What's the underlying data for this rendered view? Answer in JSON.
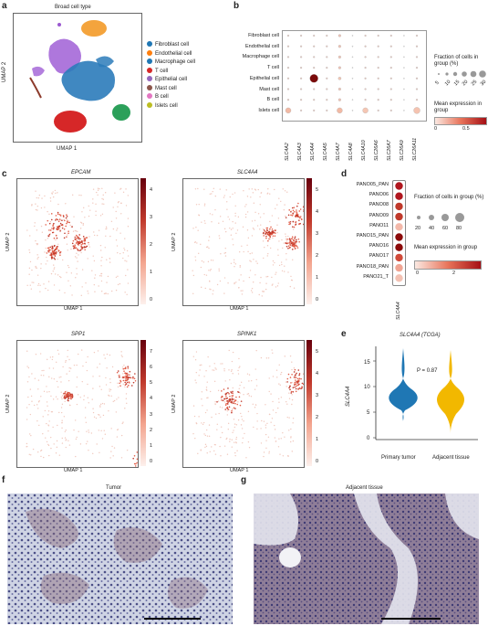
{
  "panels": {
    "a": {
      "letter": "a",
      "title": "Broad cell type",
      "xlabel": "UMAP 1",
      "ylabel": "UMAP 2",
      "legend": [
        {
          "label": "Fibroblast cell",
          "color": "#1f77b4"
        },
        {
          "label": "Endothelial cell",
          "color": "#ff7f0e"
        },
        {
          "label": "Macrophage cell",
          "color": "#1f77b4"
        },
        {
          "label": "T cell",
          "color": "#d62728"
        },
        {
          "label": "Epithelial cell",
          "color": "#9467bd"
        },
        {
          "label": "Mast cell",
          "color": "#8c564b"
        },
        {
          "label": "B cell",
          "color": "#e377c2"
        },
        {
          "label": "Islets cell",
          "color": "#bcbd22"
        }
      ],
      "cluster_colors": {
        "fibroblast": "#2b7bba",
        "endothelial": "#f39a28",
        "tcell": "#d62728",
        "epithelial": "#9b59d0",
        "green": "#2ca05a",
        "mast": "#8c3a2b"
      }
    },
    "b": {
      "letter": "b",
      "rows": [
        "Fibroblast cell",
        "Endothelial cell",
        "Macrophage cell",
        "T cell",
        "Epithelial cell",
        "Mast cell",
        "B cell",
        "Islets cell"
      ],
      "cols": [
        "SLC4A2",
        "SLC4A3",
        "SLC4A4",
        "SLC4A5",
        "SLC4A7",
        "SLC4A8",
        "SLC4A10",
        "SLC26A6",
        "SLC26A7",
        "SLC26A9",
        "SLC26A11"
      ],
      "size_title": "Fraction of cells in group (%)",
      "size_ticks": [
        "5",
        "10",
        "15",
        "20",
        "25",
        "30"
      ],
      "color_title": "Mean expression in group",
      "color_ticks": [
        "0",
        "0.5"
      ]
    },
    "c": {
      "letter": "c",
      "plots": [
        {
          "gene": "EPCAM",
          "ticks": [
            "4",
            "3",
            "2",
            "1",
            "0"
          ]
        },
        {
          "gene": "SLC4A4",
          "ticks": [
            "5",
            "4",
            "3",
            "2",
            "1",
            "0"
          ]
        },
        {
          "gene": "SPP1",
          "ticks": [
            "7",
            "6",
            "5",
            "4",
            "3",
            "2",
            "1",
            "0"
          ]
        },
        {
          "gene": "SPINK1",
          "ticks": [
            "5",
            "4",
            "3",
            "2",
            "1",
            "0"
          ]
        }
      ],
      "xlabel": "UMAP 1",
      "ylabel": "UMAP 2"
    },
    "d": {
      "letter": "d",
      "rows": [
        "PANO05_PAN",
        "PANO06",
        "PANO08",
        "PANO09",
        "PANO11",
        "PANO15_PAN",
        "PANO16",
        "PANO17",
        "PANO18_PAN",
        "PANO21_T"
      ],
      "col": "SLC4A4",
      "size_title": "Fraction of cells in group (%)",
      "size_ticks": [
        "20",
        "40",
        "60",
        "80"
      ],
      "color_title": "Mean expression in group",
      "color_ticks": [
        "0",
        "2"
      ]
    },
    "e": {
      "letter": "e",
      "title": "SLC4A4 (TCGA)",
      "ylabel": "SLC4A4",
      "pvalue": "P = 0.87",
      "yticks": [
        "15",
        "10",
        "5",
        "0"
      ],
      "groups": [
        {
          "label": "Primary tumor",
          "color": "#1f77b4"
        },
        {
          "label": "Adjacent tissue",
          "color": "#f2b800"
        }
      ]
    },
    "f": {
      "letter": "f",
      "title": "Tumor"
    },
    "g": {
      "letter": "g",
      "title": "Adjacent tissue"
    }
  }
}
